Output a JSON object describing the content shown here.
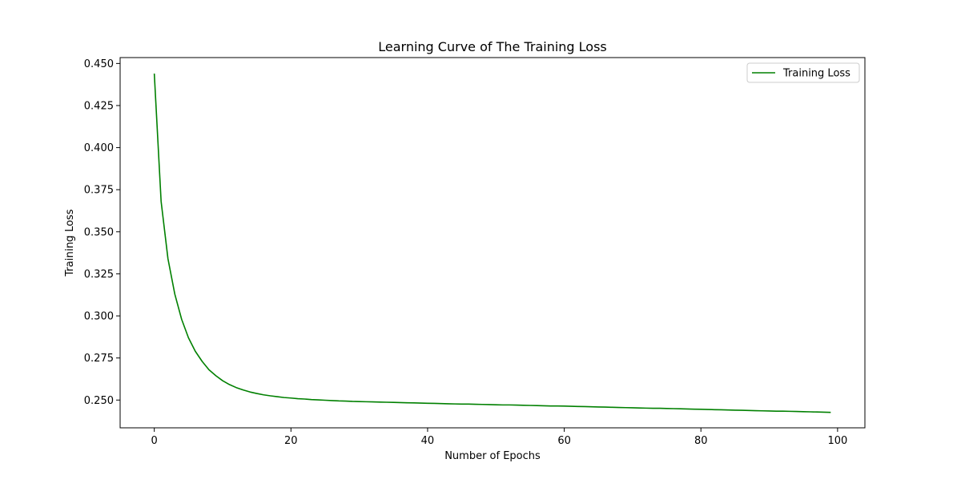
{
  "chart_data": {
    "type": "line",
    "title": "Learning Curve of The Training Loss",
    "xlabel": "Number of Epochs",
    "ylabel": "Training Loss",
    "xlim": [
      -5,
      104
    ],
    "ylim": [
      0.2335,
      0.4535
    ],
    "xticks": [
      0,
      20,
      40,
      60,
      80,
      100
    ],
    "yticks": [
      0.25,
      0.275,
      0.3,
      0.325,
      0.35,
      0.375,
      0.4,
      0.425,
      0.45
    ],
    "grid": false,
    "legend_position": "top-right",
    "series": [
      {
        "name": "Training Loss",
        "color": "#008000",
        "x": [
          0,
          1,
          2,
          3,
          4,
          5,
          6,
          7,
          8,
          9,
          10,
          11,
          12,
          13,
          14,
          15,
          16,
          17,
          18,
          19,
          20,
          21,
          22,
          23,
          24,
          25,
          26,
          27,
          28,
          29,
          30,
          31,
          32,
          33,
          34,
          35,
          36,
          37,
          38,
          39,
          40,
          41,
          42,
          43,
          44,
          45,
          46,
          47,
          48,
          49,
          50,
          51,
          52,
          53,
          54,
          55,
          56,
          57,
          58,
          59,
          60,
          61,
          62,
          63,
          64,
          65,
          66,
          67,
          68,
          69,
          70,
          71,
          72,
          73,
          74,
          75,
          76,
          77,
          78,
          79,
          80,
          81,
          82,
          83,
          84,
          85,
          86,
          87,
          88,
          89,
          90,
          91,
          92,
          93,
          94,
          95,
          96,
          97,
          98,
          99
        ],
        "values": [
          0.444,
          0.368,
          0.334,
          0.313,
          0.298,
          0.287,
          0.279,
          0.273,
          0.268,
          0.2645,
          0.2615,
          0.2592,
          0.2574,
          0.256,
          0.2548,
          0.2539,
          0.2531,
          0.2525,
          0.252,
          0.2515,
          0.2512,
          0.2508,
          0.2506,
          0.2503,
          0.2501,
          0.2499,
          0.2497,
          0.2495,
          0.2494,
          0.2492,
          0.2491,
          0.249,
          0.2489,
          0.2488,
          0.2487,
          0.2486,
          0.2485,
          0.2484,
          0.2483,
          0.2482,
          0.2481,
          0.248,
          0.2479,
          0.2478,
          0.2477,
          0.2476,
          0.2476,
          0.2475,
          0.2474,
          0.2473,
          0.2472,
          0.2471,
          0.2471,
          0.247,
          0.2469,
          0.2468,
          0.2467,
          0.2466,
          0.2465,
          0.2465,
          0.2464,
          0.2463,
          0.2462,
          0.2461,
          0.246,
          0.2459,
          0.2458,
          0.2457,
          0.2456,
          0.2455,
          0.2454,
          0.2453,
          0.2452,
          0.2451,
          0.2451,
          0.245,
          0.2449,
          0.2448,
          0.2447,
          0.2446,
          0.2445,
          0.2444,
          0.2443,
          0.2442,
          0.2441,
          0.244,
          0.2439,
          0.2438,
          0.2437,
          0.2436,
          0.2435,
          0.2434,
          0.2434,
          0.2433,
          0.2432,
          0.2431,
          0.243,
          0.2429,
          0.2428,
          0.2427
        ]
      }
    ]
  }
}
